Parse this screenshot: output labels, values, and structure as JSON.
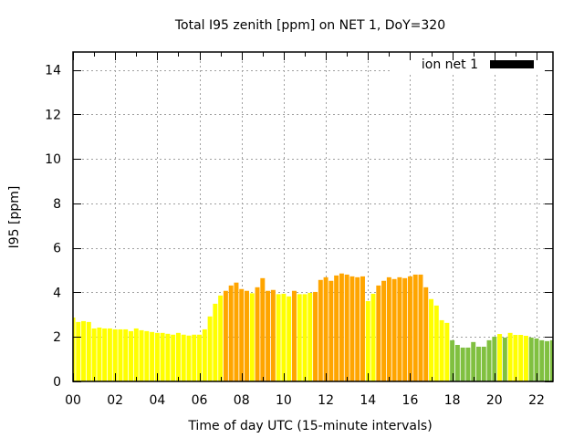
{
  "chart_data": {
    "type": "bar",
    "title": "Total I95 zenith [ppm] on NET 1, DoY=320",
    "xlabel": "Time of day UTC (15-minute intervals)",
    "ylabel": "I95 [ppm]",
    "xlim": [
      0,
      22.78
    ],
    "ylim": [
      0,
      14.8
    ],
    "grid": true,
    "legend": {
      "position": "top-right",
      "entries": [
        {
          "label": "ion net 1",
          "color": "#000000"
        }
      ]
    },
    "x_ticks": [
      {
        "value": 0,
        "label": "00"
      },
      {
        "value": 2,
        "label": "02"
      },
      {
        "value": 4,
        "label": "04"
      },
      {
        "value": 6,
        "label": "06"
      },
      {
        "value": 8,
        "label": "08"
      },
      {
        "value": 10,
        "label": "10"
      },
      {
        "value": 12,
        "label": "12"
      },
      {
        "value": 14,
        "label": "14"
      },
      {
        "value": 16,
        "label": "16"
      },
      {
        "value": 18,
        "label": "18"
      },
      {
        "value": 20,
        "label": "20"
      },
      {
        "value": 22,
        "label": "22"
      }
    ],
    "y_ticks": [
      {
        "value": 0,
        "label": "0"
      },
      {
        "value": 2,
        "label": "2"
      },
      {
        "value": 4,
        "label": "4"
      },
      {
        "value": 6,
        "label": "6"
      },
      {
        "value": 8,
        "label": "8"
      },
      {
        "value": 10,
        "label": "10"
      },
      {
        "value": 12,
        "label": "12"
      },
      {
        "value": 14,
        "label": "14"
      }
    ],
    "bar_interval_hours": 0.25,
    "colors": {
      "low": "#ffff00",
      "mid": "#ffa500",
      "green": "#80c040"
    },
    "values": [
      2.87,
      2.67,
      2.71,
      2.67,
      2.38,
      2.42,
      2.38,
      2.38,
      2.34,
      2.34,
      2.34,
      2.26,
      2.38,
      2.3,
      2.26,
      2.22,
      2.18,
      2.18,
      2.14,
      2.1,
      2.18,
      2.1,
      2.06,
      2.1,
      2.1,
      2.34,
      2.92,
      3.49,
      3.86,
      4.07,
      4.31,
      4.44,
      4.15,
      4.07,
      3.96,
      4.23,
      4.64,
      4.07,
      4.11,
      3.92,
      3.94,
      3.82,
      4.07,
      3.92,
      3.92,
      3.98,
      4.02,
      4.56,
      4.68,
      4.52,
      4.76,
      4.85,
      4.8,
      4.72,
      4.68,
      4.72,
      3.61,
      3.94,
      4.31,
      4.52,
      4.68,
      4.6,
      4.68,
      4.64,
      4.72,
      4.8,
      4.8,
      4.23,
      3.7,
      3.41,
      2.75,
      2.63,
      1.85,
      1.64,
      1.52,
      1.52,
      1.77,
      1.56,
      1.56,
      1.85,
      2.01,
      2.13,
      1.97,
      2.18,
      2.09,
      2.09,
      2.05,
      1.97,
      1.93,
      1.85,
      1.81,
      1.85
    ],
    "bar_colors": [
      "low",
      "low",
      "low",
      "low",
      "low",
      "low",
      "low",
      "low",
      "low",
      "low",
      "low",
      "low",
      "low",
      "low",
      "low",
      "low",
      "low",
      "low",
      "low",
      "low",
      "low",
      "low",
      "low",
      "low",
      "low",
      "low",
      "low",
      "low",
      "low",
      "mid",
      "mid",
      "mid",
      "mid",
      "mid",
      "low",
      "mid",
      "mid",
      "mid",
      "mid",
      "low",
      "low",
      "low",
      "mid",
      "low",
      "low",
      "low",
      "mid",
      "mid",
      "mid",
      "mid",
      "mid",
      "mid",
      "mid",
      "mid",
      "mid",
      "mid",
      "low",
      "low",
      "mid",
      "mid",
      "mid",
      "mid",
      "mid",
      "mid",
      "mid",
      "mid",
      "mid",
      "mid",
      "low",
      "low",
      "low",
      "low",
      "green",
      "green",
      "green",
      "green",
      "green",
      "green",
      "green",
      "green",
      "green",
      "low",
      "green",
      "low",
      "low",
      "low",
      "low",
      "green",
      "green",
      "green",
      "green",
      "green"
    ]
  }
}
